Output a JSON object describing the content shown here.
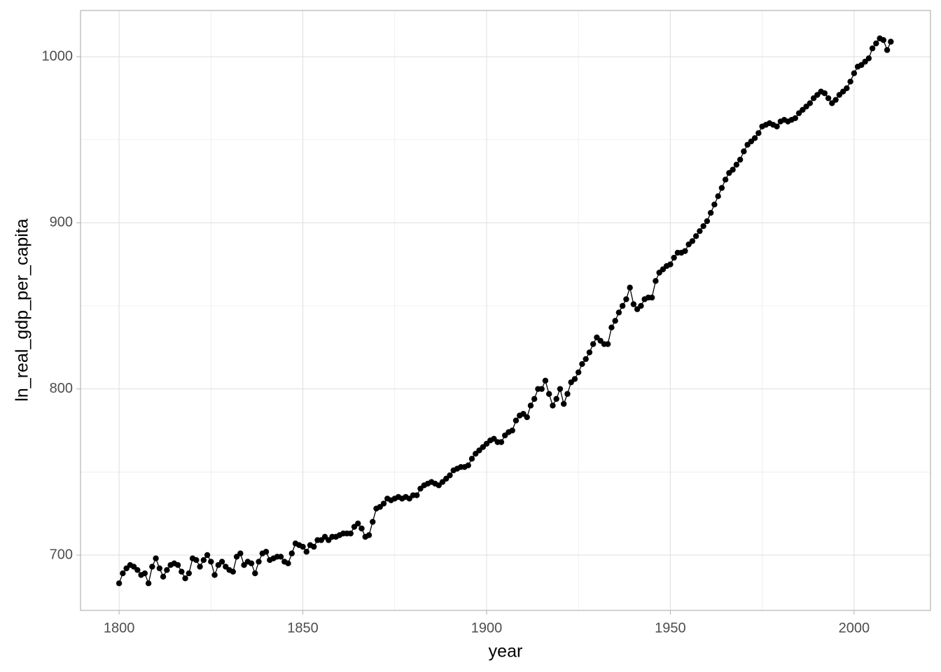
{
  "chart_data": {
    "type": "line",
    "xlabel": "year",
    "ylabel": "ln_real_gdp_per_capita",
    "x": [
      1800,
      1801,
      1802,
      1803,
      1804,
      1805,
      1806,
      1807,
      1808,
      1809,
      1810,
      1811,
      1812,
      1813,
      1814,
      1815,
      1816,
      1817,
      1818,
      1819,
      1820,
      1821,
      1822,
      1823,
      1824,
      1825,
      1826,
      1827,
      1828,
      1829,
      1830,
      1831,
      1832,
      1833,
      1834,
      1835,
      1836,
      1837,
      1838,
      1839,
      1840,
      1841,
      1842,
      1843,
      1844,
      1845,
      1846,
      1847,
      1848,
      1849,
      1850,
      1851,
      1852,
      1853,
      1854,
      1855,
      1856,
      1857,
      1858,
      1859,
      1860,
      1861,
      1862,
      1863,
      1864,
      1865,
      1866,
      1867,
      1868,
      1869,
      1870,
      1871,
      1872,
      1873,
      1874,
      1875,
      1876,
      1877,
      1878,
      1879,
      1880,
      1881,
      1882,
      1883,
      1884,
      1885,
      1886,
      1887,
      1888,
      1889,
      1890,
      1891,
      1892,
      1893,
      1894,
      1895,
      1896,
      1897,
      1898,
      1899,
      1900,
      1901,
      1902,
      1903,
      1904,
      1905,
      1906,
      1907,
      1908,
      1909,
      1910,
      1911,
      1912,
      1913,
      1914,
      1915,
      1916,
      1917,
      1918,
      1919,
      1920,
      1921,
      1922,
      1923,
      1924,
      1925,
      1926,
      1927,
      1928,
      1929,
      1930,
      1931,
      1932,
      1933,
      1934,
      1935,
      1936,
      1937,
      1938,
      1939,
      1940,
      1941,
      1942,
      1943,
      1944,
      1945,
      1946,
      1947,
      1948,
      1949,
      1950,
      1951,
      1952,
      1953,
      1954,
      1955,
      1956,
      1957,
      1958,
      1959,
      1960,
      1961,
      1962,
      1963,
      1964,
      1965,
      1966,
      1967,
      1968,
      1969,
      1970,
      1971,
      1972,
      1973,
      1974,
      1975,
      1976,
      1977,
      1978,
      1979,
      1980,
      1981,
      1982,
      1983,
      1984,
      1985,
      1986,
      1987,
      1988,
      1989,
      1990,
      1991,
      1992,
      1993,
      1994,
      1995,
      1996,
      1997,
      1998,
      1999,
      2000,
      2001,
      2002,
      2003,
      2004,
      2005,
      2006,
      2007,
      2008,
      2009,
      2010
    ],
    "series": [
      {
        "color": "#000000",
        "values": [
          683,
          689,
          692,
          694,
          693,
          691,
          688,
          689,
          683,
          693,
          698,
          692,
          687,
          691,
          694,
          695,
          694,
          690,
          686,
          689,
          698,
          697,
          693,
          697,
          700,
          696,
          688,
          694,
          696,
          693,
          691,
          690,
          699,
          701,
          694,
          696,
          695,
          689,
          696,
          701,
          702,
          697,
          698,
          699,
          699,
          696,
          695,
          701,
          707,
          706,
          705,
          702,
          706,
          705,
          709,
          709,
          711,
          709,
          711,
          711,
          712,
          713,
          713,
          713,
          717,
          719,
          716,
          711,
          712,
          720,
          728,
          729,
          731,
          734,
          733,
          734,
          735,
          734,
          735,
          734,
          736,
          736,
          740,
          742,
          743,
          744,
          743,
          742,
          744,
          746,
          748,
          751,
          752,
          753,
          753,
          754,
          758,
          761,
          763,
          765,
          767,
          769,
          770,
          768,
          768,
          772,
          774,
          775,
          781,
          784,
          785,
          783,
          790,
          794,
          800,
          800,
          805,
          797,
          790,
          794,
          800,
          791,
          797,
          804,
          806,
          810,
          815,
          818,
          822,
          827,
          831,
          829,
          827,
          827,
          837,
          841,
          846,
          850,
          854,
          861,
          851,
          848,
          850,
          854,
          855,
          855,
          865,
          870,
          872,
          874,
          875,
          879,
          882,
          882,
          883,
          887,
          889,
          892,
          895,
          898,
          901,
          906,
          911,
          916,
          921,
          926,
          930,
          932,
          935,
          938,
          943,
          947,
          949,
          951,
          954,
          958,
          959,
          960,
          959,
          958,
          961,
          962,
          961,
          962,
          963,
          966,
          968,
          970,
          972,
          975,
          977,
          979,
          978,
          975,
          972,
          974,
          977,
          979,
          981,
          985,
          990,
          994,
          995,
          997,
          999,
          1005,
          1008,
          1011,
          1010,
          1004,
          1009
        ]
      }
    ],
    "xlim": [
      1789.5,
      2020.8
    ],
    "xticks": [
      1800,
      1850,
      1900,
      1950,
      2000
    ],
    "xminorticks": [
      1825,
      1875,
      1925,
      1975
    ],
    "ylim": [
      666.7,
      1027.8
    ],
    "yticks": [
      700,
      800,
      900,
      1000
    ],
    "yminorticks": [
      750,
      850,
      950
    ],
    "grid": true
  }
}
